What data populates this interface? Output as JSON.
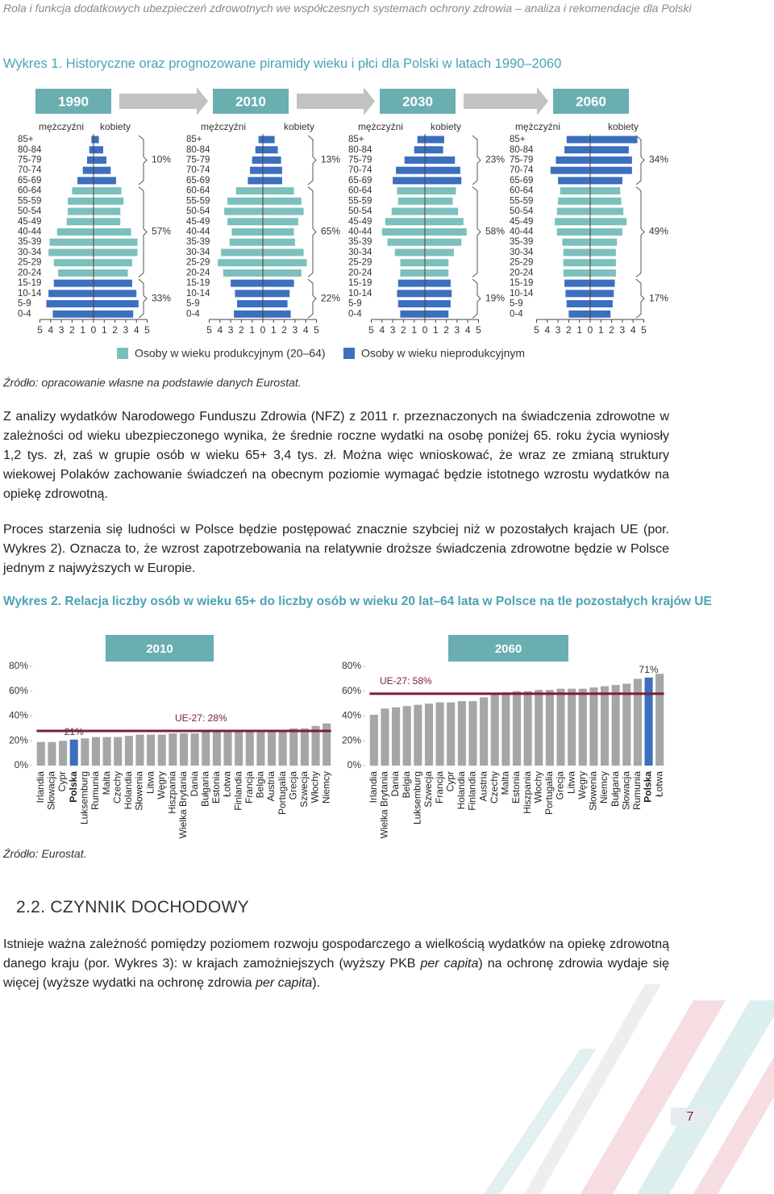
{
  "header": "Rola i funkcja dodatkowych ubezpieczeń zdrowotnych we współczesnych systemach ochrony zdrowia – analiza i rekomendacje dla Polski",
  "figure1": {
    "title": "Wykres 1. Historyczne oraz prognozowane piramidy wieku i płci dla Polski w latach 1990–2060",
    "years": [
      "1990",
      "2010",
      "2030",
      "2060"
    ],
    "male_label": "mężczyźni",
    "female_label": "kobiety",
    "age_groups": [
      "85+",
      "80-84",
      "75-79",
      "70-74",
      "65-69",
      "60-64",
      "55-59",
      "50-54",
      "45-49",
      "40-44",
      "35-39",
      "30-34",
      "25-29",
      "20-24",
      "15-19",
      "10-14",
      "5-9",
      "0-4"
    ],
    "xlim": [
      -5,
      5
    ],
    "xticks": [
      {
        "value": -5,
        "label": "5"
      },
      {
        "value": -4,
        "label": "4"
      },
      {
        "value": -3,
        "label": "3"
      },
      {
        "value": -2,
        "label": "2"
      },
      {
        "value": -1,
        "label": "1"
      },
      0,
      1,
      2,
      3,
      4,
      5
    ],
    "pyramids": [
      {
        "male": [
          0.2,
          0.4,
          0.6,
          1.0,
          1.5,
          2.0,
          2.4,
          2.4,
          2.5,
          3.4,
          4.1,
          4.2,
          3.7,
          3.3,
          3.7,
          4.2,
          4.4,
          3.8
        ],
        "female": [
          0.5,
          0.9,
          1.2,
          1.6,
          2.1,
          2.6,
          2.8,
          2.5,
          2.5,
          3.5,
          4.1,
          4.1,
          3.6,
          3.2,
          3.6,
          4.0,
          4.2,
          3.7
        ],
        "shares": [
          "10%",
          "57%",
          "33%"
        ]
      },
      {
        "male": [
          0.4,
          0.7,
          1.0,
          1.2,
          1.4,
          2.5,
          3.3,
          3.6,
          3.3,
          2.9,
          3.1,
          3.9,
          4.2,
          3.7,
          3.0,
          2.6,
          2.4,
          2.7
        ],
        "female": [
          1.1,
          1.4,
          1.7,
          1.8,
          1.8,
          2.9,
          3.6,
          3.8,
          3.3,
          2.9,
          3.0,
          3.8,
          4.1,
          3.6,
          2.9,
          2.5,
          2.3,
          2.6
        ],
        "shares": [
          "13%",
          "65%",
          "22%"
        ]
      },
      {
        "male": [
          0.7,
          1.0,
          1.9,
          2.7,
          3.0,
          2.6,
          2.5,
          3.1,
          3.7,
          4.0,
          3.5,
          2.8,
          2.3,
          2.3,
          2.5,
          2.6,
          2.5,
          2.3
        ],
        "female": [
          1.8,
          1.7,
          2.8,
          3.3,
          3.4,
          2.9,
          2.6,
          3.1,
          3.6,
          3.9,
          3.4,
          2.7,
          2.2,
          2.2,
          2.4,
          2.5,
          2.4,
          2.2
        ],
        "shares": [
          "23%",
          "58%",
          "19%"
        ]
      },
      {
        "male": [
          2.2,
          2.4,
          3.2,
          3.7,
          3.0,
          2.8,
          3.0,
          3.1,
          3.3,
          3.1,
          2.6,
          2.5,
          2.5,
          2.5,
          2.4,
          2.3,
          2.2,
          2.0
        ],
        "female": [
          4.4,
          3.6,
          3.9,
          3.9,
          3.0,
          2.8,
          2.9,
          3.1,
          3.4,
          3.0,
          2.5,
          2.4,
          2.4,
          2.4,
          2.3,
          2.2,
          2.1,
          1.9
        ],
        "shares": [
          "34%",
          "49%",
          "17%"
        ]
      }
    ],
    "legend": [
      {
        "label": "Osoby w wieku produkcyjnym (20–64)",
        "color": "#7cc0bd"
      },
      {
        "label": "Osoby w wieku nieprodukcyjnym",
        "color": "#3d6fbf"
      }
    ],
    "source": "Źródło: opracowanie własne na podstawie danych Eurostat."
  },
  "paragraphs": [
    "Z analizy wydatków Narodowego Funduszu Zdrowia (NFZ) z 2011 r. przeznaczonych na świadczenia zdrowotne w zależności od wieku ubezpieczonego wynika, że średnie roczne wydatki na osobę poniżej 65. roku życia wyniosły 1,2 tys. zł, zaś w grupie osób w wieku 65+ 3,4 tys. zł. Można więc wnioskować, że wraz ze zmianą struktury wiekowej Polaków zachowanie świadczeń na obecnym poziomie wymagać będzie istotnego wzrostu wydatków na opiekę zdrowotną.",
    "Proces starzenia się ludności w Polsce będzie postępować znacznie szybciej niż w pozostałych krajach UE (por. Wykres 2). Oznacza to, że wzrost zapotrzebowania na relatywnie droższe świadczenia zdrowotne będzie w Polsce jednym z najwyższych w Europie."
  ],
  "figure2": {
    "title": "Wykres 2. Relacja liczby osób w wieku 65+ do liczby osób w wieku 20 lat–64 lata w Polsce na tle pozostałych krajów UE",
    "charts": [
      {
        "type": "bar",
        "title": "2010",
        "categories": [
          "Irlandia",
          "Słowacja",
          "Cypr",
          "Polska",
          "Luksemburg",
          "Rumunia",
          "Malta",
          "Czechy",
          "Holandia",
          "Słowenia",
          "Litwa",
          "Węgry",
          "Hiszpania",
          "Wielka Brytania",
          "Dania",
          "Bułgaria",
          "Estonia",
          "Łotwa",
          "Finlandia",
          "Francja",
          "Belgia",
          "Austria",
          "Portugalia",
          "Grecja",
          "Szwecja",
          "Włochy",
          "Niemcy"
        ],
        "values": [
          19,
          19,
          20,
          21,
          22,
          23,
          23,
          23,
          24,
          25,
          25,
          25,
          26,
          26,
          26,
          27,
          27,
          27,
          27,
          28,
          28,
          28,
          28,
          30,
          30,
          32,
          34
        ],
        "color": "#a6a6a6",
        "highlight_color": "#3d6fbf",
        "highlight_category": "Polska",
        "highlight_label": "21%",
        "reference": {
          "value": 28,
          "label": "UE-27: 28%",
          "color": "#7b1c3f"
        },
        "ylim": [
          0,
          80
        ],
        "yticks": [
          {
            "value": 0,
            "label": "0%"
          },
          {
            "value": 20,
            "label": "20%"
          },
          {
            "value": 40,
            "label": "40%"
          },
          {
            "value": 60,
            "label": "60%"
          },
          {
            "value": 80,
            "label": "80%"
          }
        ]
      },
      {
        "type": "bar",
        "title": "2060",
        "categories": [
          "Irlandia",
          "Wielka Brytania",
          "Dania",
          "Belgia",
          "Luksemburg",
          "Szwecja",
          "Francja",
          "Cypr",
          "Holandia",
          "Finlandia",
          "Austria",
          "Czechy",
          "Malta",
          "Estonia",
          "Hiszpania",
          "Włochy",
          "Portugalia",
          "Grecja",
          "Litwa",
          "Węgry",
          "Słowenia",
          "Niemcy",
          "Bułgaria",
          "Słowacja",
          "Rumunia",
          "Polska",
          "Łotwa"
        ],
        "values": [
          41,
          46,
          47,
          48,
          49,
          50,
          51,
          51,
          52,
          52,
          55,
          58,
          59,
          60,
          60,
          61,
          61,
          62,
          62,
          62,
          63,
          64,
          65,
          66,
          70,
          71,
          74
        ],
        "color": "#a6a6a6",
        "highlight_color": "#3d6fbf",
        "highlight_category": "Polska",
        "highlight_label": "71%",
        "reference": {
          "value": 58,
          "label": "UE-27: 58%",
          "color": "#7b1c3f"
        },
        "ylim": [
          0,
          80
        ],
        "yticks": [
          {
            "value": 0,
            "label": "0%"
          },
          {
            "value": 20,
            "label": "20%"
          },
          {
            "value": 40,
            "label": "40%"
          },
          {
            "value": 60,
            "label": "60%"
          },
          {
            "value": 80,
            "label": "80%"
          }
        ]
      }
    ],
    "source": "Źródło: Eurostat."
  },
  "section_title": "2.2. CZYNNIK DOCHODOWY",
  "paragraph3": [
    "Istnieje ważna zależność pomiędzy poziomem rozwoju gospodarczego a wielkością wydatków na opiekę zdrowotną danego kraju (por. Wykres 3): w krajach zamożniejszych (wyższy PKB ",
    "per capita",
    ") na ochronę zdrowia wydaje się więcej (wyższe wydatki na ochronę zdrowia ",
    "per capita",
    ")."
  ],
  "page_number": "7"
}
